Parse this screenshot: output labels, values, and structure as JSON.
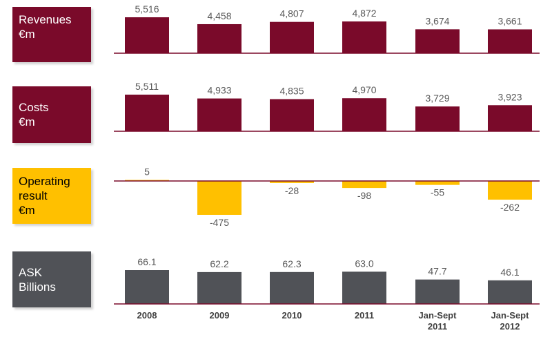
{
  "chart_data": {
    "type": "bar",
    "categories": [
      "2008",
      "2009",
      "2010",
      "2011",
      "Jan-Sept\n2011",
      "Jan-Sept\n2012"
    ],
    "panels": [
      {
        "id": "revenues",
        "label": [
          "Revenues",
          "€m"
        ],
        "color": "#7a0a2a",
        "label_text_color": "#ffffff",
        "values": [
          5516,
          4458,
          4807,
          4872,
          3674,
          3661
        ],
        "value_labels": [
          "5,516",
          "4,458",
          "4,807",
          "4,872",
          "3,674",
          "3,661"
        ],
        "ylim": [
          0,
          5516
        ]
      },
      {
        "id": "costs",
        "label": [
          "Costs",
          "€m"
        ],
        "color": "#7a0a2a",
        "label_text_color": "#ffffff",
        "values": [
          5511,
          4933,
          4835,
          4970,
          3729,
          3923
        ],
        "value_labels": [
          "5,511",
          "4,933",
          "4,835",
          "4,970",
          "3,729",
          "3,923"
        ],
        "ylim": [
          0,
          5511
        ]
      },
      {
        "id": "operating-result",
        "label": [
          "Operating",
          "result",
          "€m"
        ],
        "color": "#ffc000",
        "label_text_color": "#000000",
        "values": [
          5,
          -475,
          -28,
          -98,
          -55,
          -262
        ],
        "value_labels": [
          "5",
          "-475",
          "-28",
          "-98",
          "-55",
          "-262"
        ],
        "ylim": [
          -475,
          0
        ]
      },
      {
        "id": "ask",
        "label": [
          "ASK",
          "Billions"
        ],
        "color": "#505257",
        "label_text_color": "#ffffff",
        "values": [
          66.1,
          62.2,
          62.3,
          63.0,
          47.7,
          46.1
        ],
        "value_labels": [
          "66.1",
          "62.2",
          "62.3",
          "63.0",
          "47.7",
          "46.1"
        ],
        "ylim": [
          0,
          66.1
        ]
      }
    ]
  },
  "colors": {
    "baseline": "#7a0a2a",
    "value_text": "#595959",
    "category_text": "#404040"
  }
}
